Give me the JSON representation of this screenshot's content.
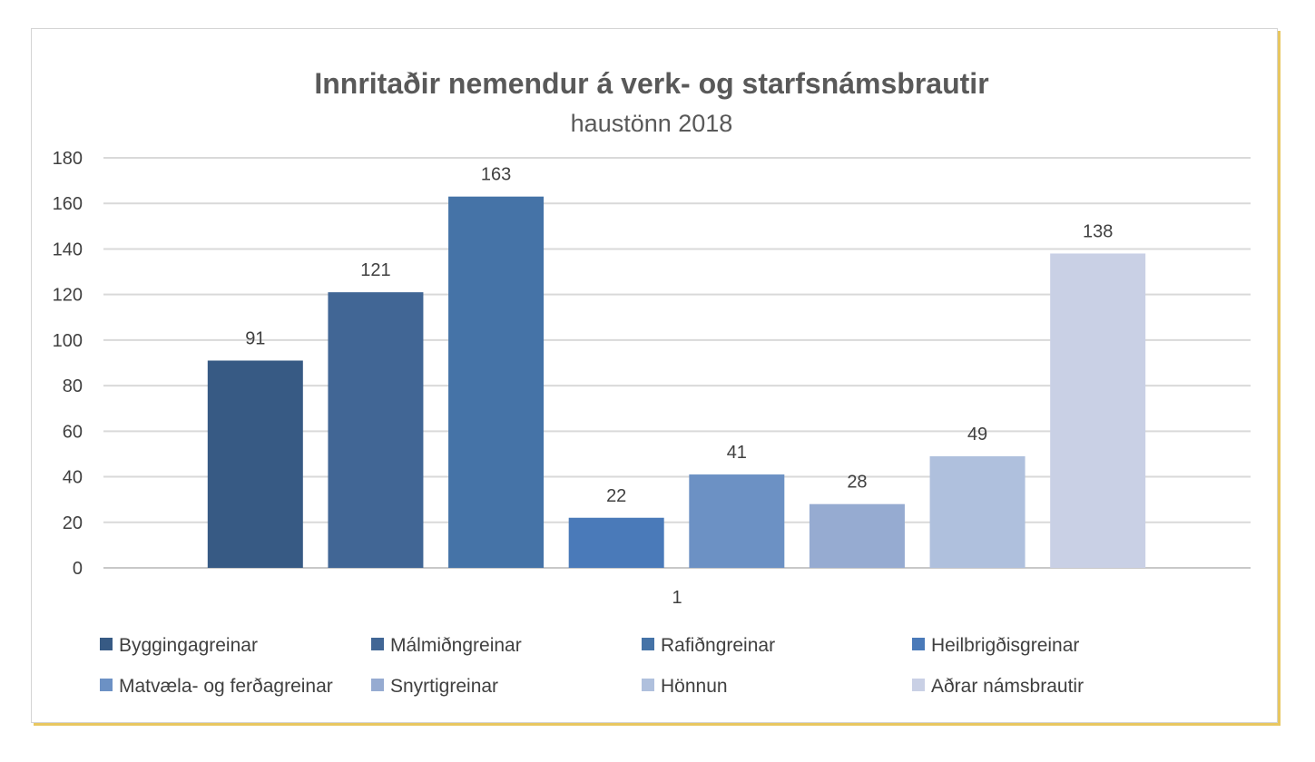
{
  "chart_data": {
    "type": "bar",
    "title": "Innritaðir nemendur á verk- og starfsnámsbrautir",
    "subtitle": "haustönn 2018",
    "categories": [
      "1"
    ],
    "series": [
      {
        "name": "Byggingagreinar",
        "values": [
          91
        ],
        "color": "#375a84"
      },
      {
        "name": "Málmiðngreinar",
        "values": [
          121
        ],
        "color": "#416695"
      },
      {
        "name": "Rafiðngreinar",
        "values": [
          163
        ],
        "color": "#4573a7"
      },
      {
        "name": "Heilbrigðisgreinar",
        "values": [
          22
        ],
        "color": "#4a7ab9"
      },
      {
        "name": "Matvæla- og ferðagreinar",
        "values": [
          41
        ],
        "color": "#6c91c4"
      },
      {
        "name": "Snyrtigreinar",
        "values": [
          28
        ],
        "color": "#96abd1"
      },
      {
        "name": "Hönnun",
        "values": [
          49
        ],
        "color": "#afc0dd"
      },
      {
        "name": "Aðrar námsbrautir",
        "values": [
          138
        ],
        "color": "#c9d0e5"
      }
    ],
    "ylim": [
      0,
      180
    ],
    "yticks": [
      0,
      20,
      40,
      60,
      80,
      100,
      120,
      140,
      160,
      180
    ],
    "grid": true,
    "legend_position": "bottom"
  }
}
